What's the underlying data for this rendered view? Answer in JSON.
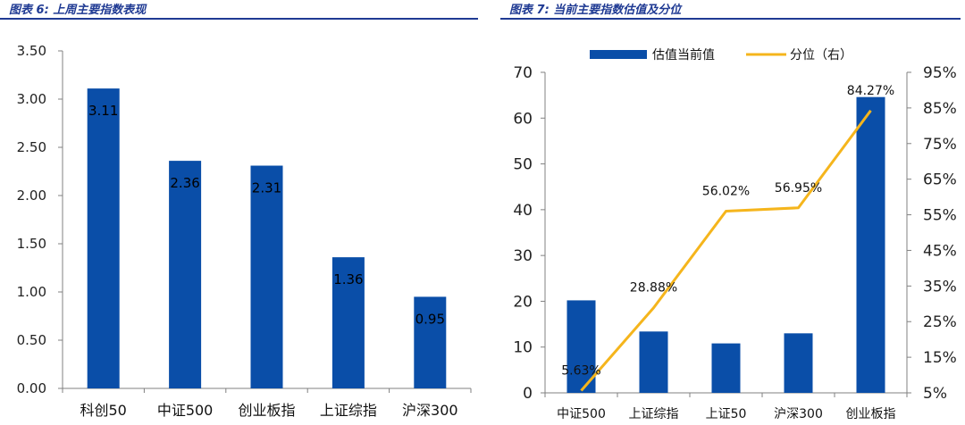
{
  "figures": [
    {
      "caption": "图表 6: 上周主要指数表现"
    },
    {
      "caption": "图表 7: 当前主要指数估值及分位"
    }
  ],
  "colors": {
    "bar": "#0a4ea8",
    "line": "#f5b51c",
    "caption": "#1f3a93",
    "axis": "#808080"
  },
  "chart_data": [
    {
      "type": "bar",
      "title": "",
      "categories": [
        "科创50",
        "中证500",
        "创业板指",
        "上证综指",
        "沪深300"
      ],
      "values": [
        3.11,
        2.36,
        2.31,
        1.36,
        0.95
      ],
      "data_labels": [
        "3.11",
        "2.36",
        "2.31",
        "1.36",
        "0.95"
      ],
      "ylim": [
        0,
        3.5
      ],
      "yticks": [
        "0.00",
        "0.50",
        "1.00",
        "1.50",
        "2.00",
        "2.50",
        "3.00",
        "3.50"
      ],
      "grid": false,
      "legend": false
    },
    {
      "type": "bar+line",
      "title": "",
      "categories": [
        "中证500",
        "上证综指",
        "上证50",
        "沪深300",
        "创业板指"
      ],
      "series": [
        {
          "name": "估值当前值",
          "type": "bar",
          "axis": "left",
          "values": [
            20.2,
            13.4,
            10.8,
            13.0,
            64.6
          ]
        },
        {
          "name": "分位（右）",
          "type": "line",
          "axis": "right",
          "values": [
            5.63,
            28.88,
            56.02,
            56.95,
            84.27
          ],
          "data_labels": [
            "5.63%",
            "28.88%",
            "56.02%",
            "56.95%",
            "84.27%"
          ]
        }
      ],
      "ylim": [
        0,
        70
      ],
      "yticks": [
        "0",
        "10",
        "20",
        "30",
        "40",
        "50",
        "60",
        "70"
      ],
      "y2lim": [
        5,
        95
      ],
      "y2ticks": [
        "5%",
        "15%",
        "25%",
        "35%",
        "45%",
        "55%",
        "65%",
        "75%",
        "85%",
        "95%"
      ],
      "grid": false,
      "legend": "top"
    }
  ]
}
